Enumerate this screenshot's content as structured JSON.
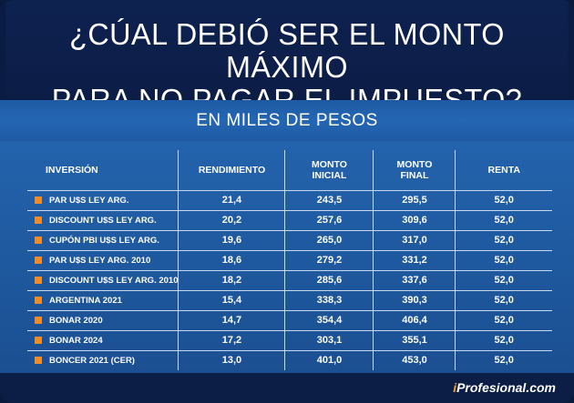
{
  "title": {
    "line1": "¿CÚAL DEBIÓ SER EL MONTO MÁXIMO",
    "line2": "PARA NO PAGAR EL IMPUESTO?"
  },
  "subtitle": "EN MILES DE PESOS",
  "table": {
    "headers": {
      "inversion": "INVERSIÓN",
      "rendimiento": "RENDIMIENTO",
      "monto_inicial_1": "MONTO",
      "monto_inicial_2": "INICIAL",
      "monto_final_1": "MONTO",
      "monto_final_2": "FINAL",
      "renta": "RENTA"
    },
    "rows": [
      {
        "inversion": "PAR U$S LEY ARG.",
        "rendimiento": "21,4",
        "monto_inicial": "243,5",
        "monto_final": "295,5",
        "renta": "52,0"
      },
      {
        "inversion": "DISCOUNT U$S LEY ARG.",
        "rendimiento": "20,2",
        "monto_inicial": "257,6",
        "monto_final": "309,6",
        "renta": "52,0"
      },
      {
        "inversion": "CUPÓN PBI U$S LEY ARG.",
        "rendimiento": "19,6",
        "monto_inicial": "265,0",
        "monto_final": "317,0",
        "renta": "52,0"
      },
      {
        "inversion": "PAR U$S LEY ARG. 2010",
        "rendimiento": "18,6",
        "monto_inicial": "279,2",
        "monto_final": "331,2",
        "renta": "52,0"
      },
      {
        "inversion": "DISCOUNT U$S LEY ARG. 2010",
        "rendimiento": "18,2",
        "monto_inicial": "285,6",
        "monto_final": "337,6",
        "renta": "52,0"
      },
      {
        "inversion": "ARGENTINA 2021",
        "rendimiento": "15,4",
        "monto_inicial": "338,3",
        "monto_final": "390,3",
        "renta": "52,0"
      },
      {
        "inversion": "BONAR 2020",
        "rendimiento": "14,7",
        "monto_inicial": "354,4",
        "monto_final": "406,4",
        "renta": "52,0"
      },
      {
        "inversion": "BONAR 2024",
        "rendimiento": "17,2",
        "monto_inicial": "303,1",
        "monto_final": "355,1",
        "renta": "52,0"
      },
      {
        "inversion": "BONCER 2021 (CER)",
        "rendimiento": "13,0",
        "monto_inicial": "401,0",
        "monto_final": "453,0",
        "renta": "52,0"
      }
    ]
  },
  "brand": {
    "i": "i",
    "rest": "Profesional.com"
  },
  "colors": {
    "bullet": "#f08c28",
    "band": "#2566b3",
    "background": "#0b1c44"
  }
}
